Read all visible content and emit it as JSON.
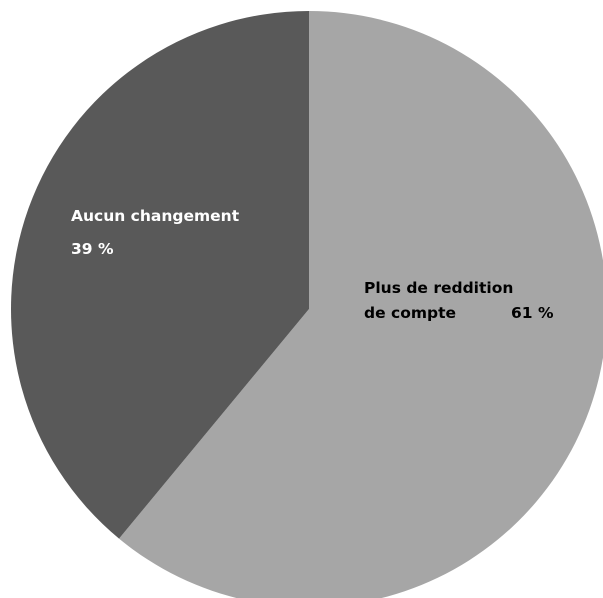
{
  "chart_data": {
    "type": "pie",
    "start_angle_deg": 0,
    "direction": "clockwise",
    "slices": [
      {
        "label_lines": [
          "Plus de reddition",
          "de compte"
        ],
        "value_text": "61 %",
        "value": 61,
        "color": "#a6a6a6",
        "label_color": "#000000"
      },
      {
        "label_lines": [
          "Aucun changement"
        ],
        "value_text": "39 %",
        "value": 39,
        "color": "#595959",
        "label_color": "#ffffff"
      }
    ]
  }
}
